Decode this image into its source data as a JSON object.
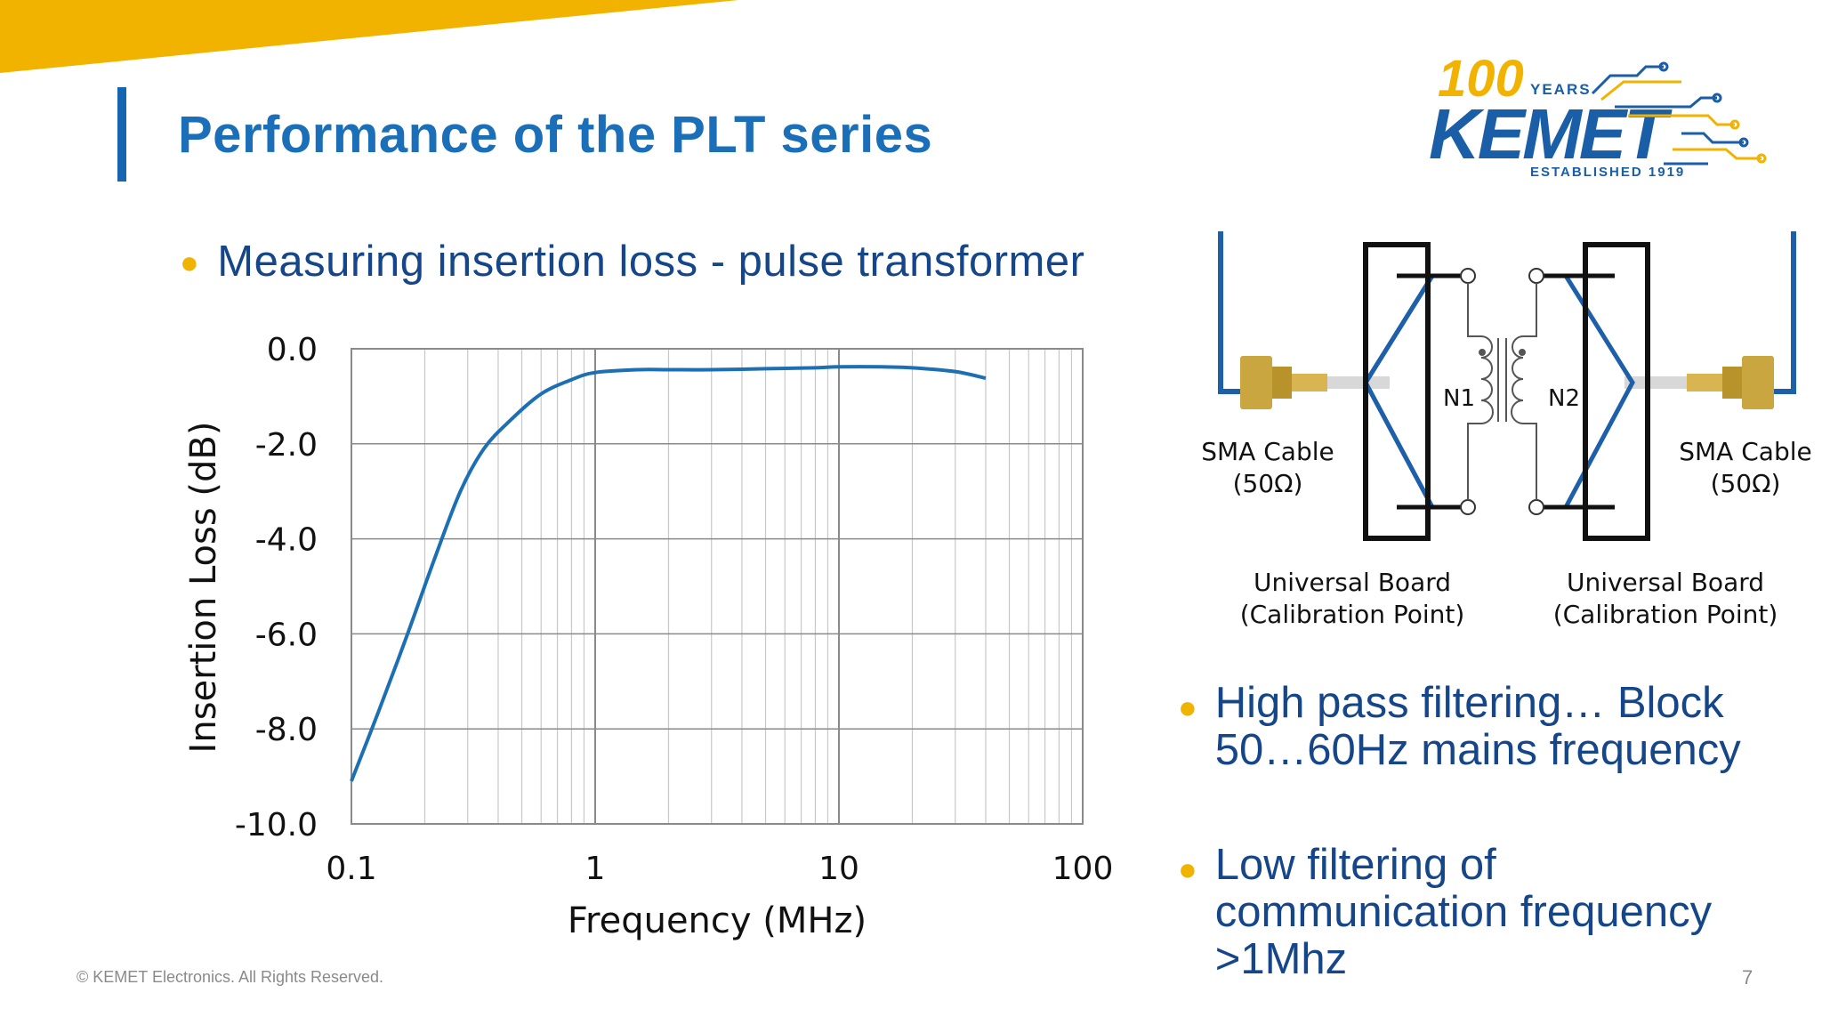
{
  "slide": {
    "title": "Performance of the PLT series",
    "bullet_main": "Measuring insertion loss - pulse transformer",
    "bullets_right": [
      "High pass filtering… Block 50…60Hz mains frequency",
      "Low filtering of communication frequency >1Mhz"
    ],
    "footer": "© KEMET Electronics. All Rights Reserved.",
    "page_number": "7"
  },
  "logo": {
    "years_number": "100",
    "years_word": "YEARS",
    "brand": "KEMET",
    "established": "ESTABLISHED 1919"
  },
  "diagram": {
    "left_cable": "SMA Cable",
    "left_impedance": "(50Ω)",
    "right_cable": "SMA Cable",
    "right_impedance": "(50Ω)",
    "left_board": "Universal Board",
    "left_board_sub": "(Calibration Point)",
    "right_board": "Universal Board",
    "right_board_sub": "(Calibration Point)",
    "n1": "N1",
    "n2": "N2"
  },
  "colors": {
    "title": "#1a6fb8",
    "text": "#16468a",
    "bullet": "#f0b400",
    "accent_band": "#f2b300",
    "curve": "#1d6fb3"
  },
  "chart_data": {
    "type": "line",
    "title": "",
    "xlabel": "Frequency (MHz)",
    "ylabel": "Insertion Loss (dB)",
    "xscale": "log",
    "xlim": [
      0.1,
      100
    ],
    "ylim": [
      -10,
      0
    ],
    "xticks": [
      "0.1",
      "1",
      "10",
      "100"
    ],
    "yticks": [
      "0.0",
      "-2.0",
      "-4.0",
      "-6.0",
      "-8.0",
      "-10.0"
    ],
    "grid": true,
    "series": [
      {
        "x": [
          0.1,
          0.13,
          0.17,
          0.22,
          0.28,
          0.35,
          0.45,
          0.6,
          0.8,
          1.0,
          1.5,
          2,
          3,
          5,
          8,
          10,
          15,
          20,
          30,
          40
        ],
        "y": [
          -9.1,
          -7.6,
          -6.0,
          -4.4,
          -3.0,
          -2.1,
          -1.5,
          -0.95,
          -0.65,
          -0.5,
          -0.44,
          -0.44,
          -0.44,
          -0.42,
          -0.4,
          -0.38,
          -0.38,
          -0.4,
          -0.48,
          -0.62
        ]
      }
    ]
  }
}
